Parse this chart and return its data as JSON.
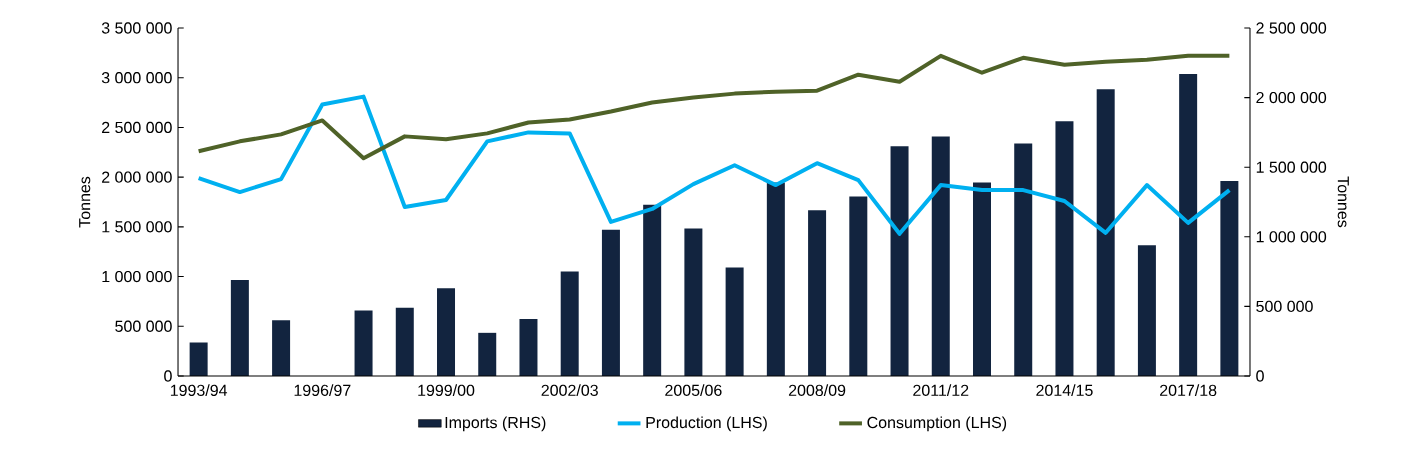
{
  "chart_data": {
    "type": "bar",
    "categories": [
      "1993/94",
      null,
      null,
      "1996/97",
      null,
      null,
      "1999/00",
      null,
      null,
      "2002/03",
      null,
      null,
      "2005/06",
      null,
      null,
      "2008/09",
      null,
      null,
      "2011/12",
      null,
      null,
      "2014/15",
      null,
      null,
      "2017/18",
      null
    ],
    "ylabel": "Tonnes",
    "y2label": "Tonnes",
    "legend": "bottom",
    "ylim": [
      0,
      3500000
    ],
    "yticks": [
      0,
      {
        "value": 500000,
        "label": "500 000"
      },
      {
        "value": 1000000,
        "label": "1 000 000"
      },
      {
        "value": 1500000,
        "label": "1 500 000"
      },
      {
        "value": 2000000,
        "label": "2 000 000"
      },
      {
        "value": 2500000,
        "label": "2 500 000"
      },
      {
        "value": 3000000,
        "label": "3 000 000"
      },
      {
        "value": 3500000,
        "label": "3 500 000"
      }
    ],
    "y2lim": [
      0,
      2500000
    ],
    "y2ticks": [
      0,
      {
        "value": 500000,
        "label": "500 000"
      },
      {
        "value": 1000000,
        "label": "1 000 000"
      },
      {
        "value": 1500000,
        "label": "1 500 000"
      },
      {
        "value": 2000000,
        "label": "2 000 000"
      },
      {
        "value": 2500000,
        "label": "2 500 000"
      }
    ],
    "series": [
      {
        "name": "Imports (RHS)",
        "axis": "y2",
        "color": "#12243f",
        "values": [
          240000,
          690000,
          400000,
          null,
          470000,
          490000,
          630000,
          310000,
          410000,
          750000,
          1050000,
          1230000,
          1060000,
          780000,
          1390000,
          1190000,
          1290000,
          1650000,
          1720000,
          1390000,
          1670000,
          1830000,
          2060000,
          940000,
          2170000,
          1400000
        ]
      },
      {
        "name": "Production (LHS)",
        "type": "line",
        "color": "#00b0f0",
        "values": [
          1990000,
          1850000,
          1980000,
          2730000,
          2810000,
          1700000,
          1770000,
          2360000,
          2450000,
          2440000,
          1550000,
          1680000,
          1930000,
          2120000,
          1920000,
          2140000,
          1970000,
          1430000,
          1920000,
          1870000,
          1870000,
          1760000,
          1440000,
          1920000,
          1540000,
          1870000
        ]
      },
      {
        "name": "Consumption (LHS)",
        "type": "line",
        "color": "#4f6228",
        "values": [
          2260000,
          2360000,
          2430000,
          2570000,
          2190000,
          2410000,
          2380000,
          2440000,
          2550000,
          2580000,
          2660000,
          2750000,
          2800000,
          2840000,
          2860000,
          2870000,
          3030000,
          2960000,
          3220000,
          3050000,
          3200000,
          3130000,
          3160000,
          3180000,
          3220000,
          3220000
        ]
      }
    ]
  }
}
